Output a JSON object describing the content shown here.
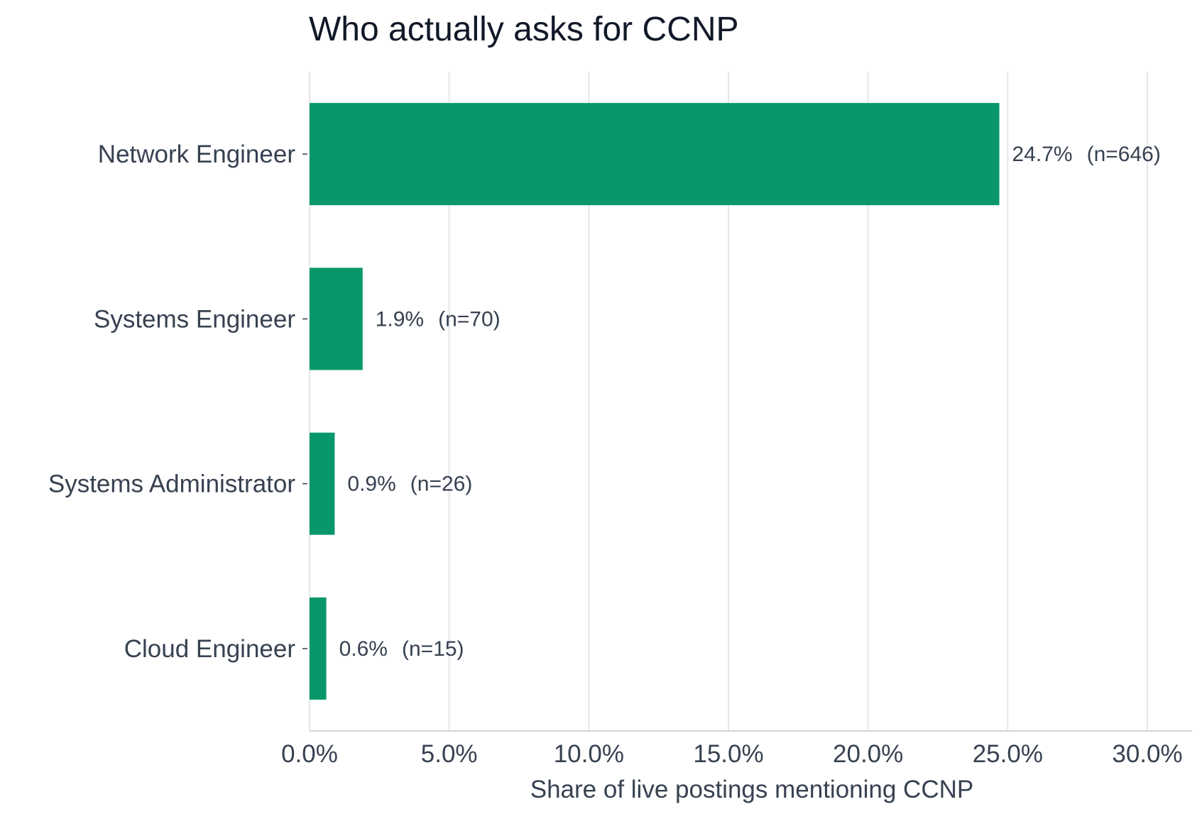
{
  "chart_data": {
    "type": "bar",
    "orientation": "horizontal",
    "title": "Who actually asks for CCNP",
    "xlabel": "Share of live postings mentioning CCNP",
    "ylabel": "",
    "categories": [
      "Network Engineer",
      "Systems Engineer",
      "Systems Administrator",
      "Cloud Engineer"
    ],
    "values": [
      24.7,
      1.9,
      0.9,
      0.6
    ],
    "value_labels": [
      "24.7%",
      "1.9%",
      "0.9%",
      "0.6%"
    ],
    "counts": [
      "(n=646)",
      "(n=70)",
      "(n=26)",
      "(n=15)"
    ],
    "xlim": [
      0,
      31.6
    ],
    "xticks": [
      0,
      5,
      10,
      15,
      20,
      25,
      30
    ],
    "xtick_labels": [
      "0.0%",
      "5.0%",
      "10.0%",
      "15.0%",
      "20.0%",
      "25.0%",
      "30.0%"
    ],
    "grid": "vertical",
    "legend": "none",
    "bar_color": "#07976b",
    "grid_color": "#e5e7eb"
  }
}
